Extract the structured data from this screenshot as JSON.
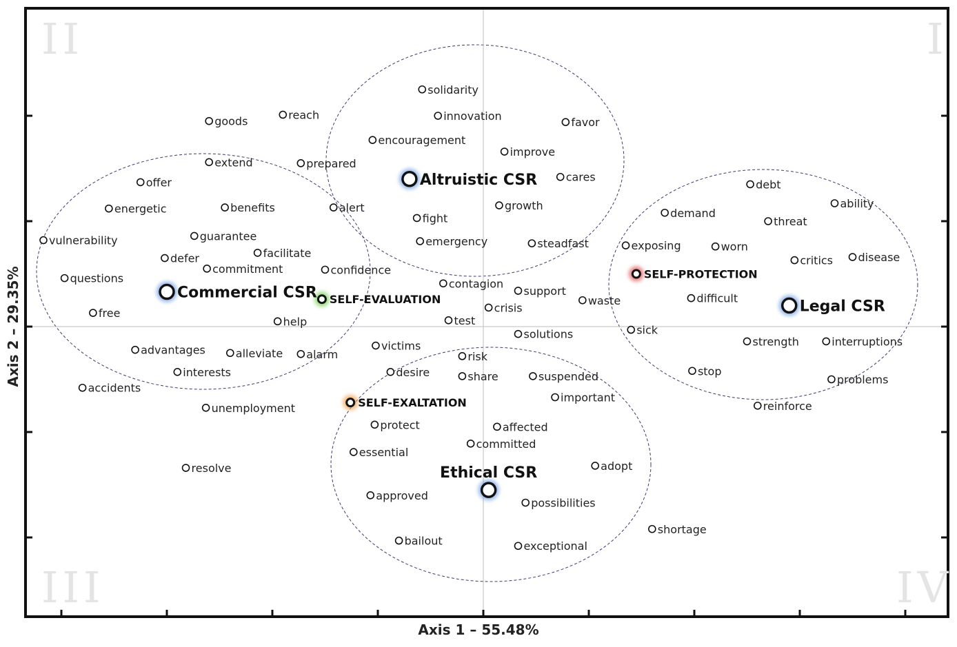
{
  "chart_data": {
    "type": "scatter",
    "xlabel": "Axis 1 – 55.48%",
    "ylabel": "Axis 2 – 29.35%",
    "quadrants": {
      "I": "I",
      "II": "II",
      "III": "III",
      "IV": "IV"
    },
    "xlim": [
      -4,
      4.4
    ],
    "ylim": [
      -2.75,
      3.0
    ],
    "grid": false,
    "origin_lines": true,
    "groups": [
      {
        "label": "Altruistic CSR",
        "x": -0.7,
        "y": 1.4
      },
      {
        "label": "Commercial CSR",
        "x": -3.0,
        "y": 0.33
      },
      {
        "label": "Legal CSR",
        "x": 2.9,
        "y": 0.2
      },
      {
        "label": "Ethical CSR",
        "x": 0.05,
        "y": -1.55
      }
    ],
    "clusters": [
      {
        "label": "SELF-EVALUATION",
        "x": -1.53,
        "y": 0.26,
        "color": "#7cd25a"
      },
      {
        "label": "SELF-PROTECTION",
        "x": 1.45,
        "y": 0.5,
        "color": "#e05a5a"
      },
      {
        "label": "SELF-EXALTATION",
        "x": -1.26,
        "y": -0.72,
        "color": "#f0a050"
      }
    ],
    "words": [
      {
        "label": "solidarity",
        "x": -0.58,
        "y": 2.25
      },
      {
        "label": "innovation",
        "x": -0.43,
        "y": 2.0
      },
      {
        "label": "favor",
        "x": 0.78,
        "y": 1.94
      },
      {
        "label": "encouragement",
        "x": -1.05,
        "y": 1.77
      },
      {
        "label": "improve",
        "x": 0.2,
        "y": 1.66
      },
      {
        "label": "cares",
        "x": 0.73,
        "y": 1.42
      },
      {
        "label": "growth",
        "x": 0.15,
        "y": 1.15
      },
      {
        "label": "fight",
        "x": -0.63,
        "y": 1.03
      },
      {
        "label": "emergency",
        "x": -0.6,
        "y": 0.81
      },
      {
        "label": "steadfast",
        "x": 0.46,
        "y": 0.79
      },
      {
        "label": "goods",
        "x": -2.6,
        "y": 1.95
      },
      {
        "label": "reach",
        "x": -1.9,
        "y": 2.01
      },
      {
        "label": "extend",
        "x": -2.6,
        "y": 1.56
      },
      {
        "label": "prepared",
        "x": -1.73,
        "y": 1.55
      },
      {
        "label": "offer",
        "x": -3.25,
        "y": 1.37
      },
      {
        "label": "energetic",
        "x": -3.55,
        "y": 1.12
      },
      {
        "label": "benefits",
        "x": -2.45,
        "y": 1.13
      },
      {
        "label": "alert",
        "x": -1.42,
        "y": 1.13
      },
      {
        "label": "guarantee",
        "x": -2.74,
        "y": 0.86
      },
      {
        "label": "vulnerability",
        "x": -4.17,
        "y": 0.82
      },
      {
        "label": "facilitate",
        "x": -2.14,
        "y": 0.7
      },
      {
        "label": "defer",
        "x": -3.02,
        "y": 0.65
      },
      {
        "label": "commitment",
        "x": -2.62,
        "y": 0.55
      },
      {
        "label": "confidence",
        "x": -1.5,
        "y": 0.54
      },
      {
        "label": "questions",
        "x": -3.97,
        "y": 0.46
      },
      {
        "label": "contagion",
        "x": -0.38,
        "y": 0.41
      },
      {
        "label": "support",
        "x": 0.33,
        "y": 0.34
      },
      {
        "label": "free",
        "x": -3.7,
        "y": 0.13
      },
      {
        "label": "crisis",
        "x": 0.05,
        "y": 0.18
      },
      {
        "label": "waste",
        "x": 0.94,
        "y": 0.25
      },
      {
        "label": "help",
        "x": -1.95,
        "y": 0.05
      },
      {
        "label": "test",
        "x": -0.33,
        "y": 0.06
      },
      {
        "label": "solutions",
        "x": 0.33,
        "y": -0.07
      },
      {
        "label": "victims",
        "x": -1.02,
        "y": -0.18
      },
      {
        "label": "advantages",
        "x": -3.3,
        "y": -0.22
      },
      {
        "label": "alleviate",
        "x": -2.4,
        "y": -0.25
      },
      {
        "label": "alarm",
        "x": -1.73,
        "y": -0.26
      },
      {
        "label": "risk",
        "x": -0.2,
        "y": -0.28
      },
      {
        "label": "interests",
        "x": -2.9,
        "y": -0.43
      },
      {
        "label": "desire",
        "x": -0.88,
        "y": -0.43
      },
      {
        "label": "share",
        "x": -0.2,
        "y": -0.47
      },
      {
        "label": "suspended",
        "x": 0.47,
        "y": -0.47
      },
      {
        "label": "accidents",
        "x": -3.8,
        "y": -0.58
      },
      {
        "label": "important",
        "x": 0.68,
        "y": -0.67
      },
      {
        "label": "unemployment",
        "x": -2.63,
        "y": -0.77
      },
      {
        "label": "protect",
        "x": -1.03,
        "y": -0.93
      },
      {
        "label": "affected",
        "x": 0.13,
        "y": -0.95
      },
      {
        "label": "committed",
        "x": -0.12,
        "y": -1.11
      },
      {
        "label": "essential",
        "x": -1.23,
        "y": -1.19
      },
      {
        "label": "adopt",
        "x": 1.06,
        "y": -1.32
      },
      {
        "label": "resolve",
        "x": -2.82,
        "y": -1.34
      },
      {
        "label": "approved",
        "x": -1.07,
        "y": -1.6
      },
      {
        "label": "possibilities",
        "x": 0.4,
        "y": -1.67
      },
      {
        "label": "shortage",
        "x": 1.6,
        "y": -1.92
      },
      {
        "label": "bailout",
        "x": -0.8,
        "y": -2.03
      },
      {
        "label": "exceptional",
        "x": 0.33,
        "y": -2.08
      },
      {
        "label": "debt",
        "x": 2.53,
        "y": 1.35
      },
      {
        "label": "ability",
        "x": 3.33,
        "y": 1.17
      },
      {
        "label": "demand",
        "x": 1.72,
        "y": 1.08
      },
      {
        "label": "threat",
        "x": 2.7,
        "y": 1.0
      },
      {
        "label": "exposing",
        "x": 1.35,
        "y": 0.77
      },
      {
        "label": "worn",
        "x": 2.2,
        "y": 0.76
      },
      {
        "label": "critics",
        "x": 2.95,
        "y": 0.63
      },
      {
        "label": "disease",
        "x": 3.5,
        "y": 0.66
      },
      {
        "label": "difficult",
        "x": 1.97,
        "y": 0.27
      },
      {
        "label": "sick",
        "x": 1.4,
        "y": -0.03
      },
      {
        "label": "strength",
        "x": 2.5,
        "y": -0.14
      },
      {
        "label": "interruptions",
        "x": 3.25,
        "y": -0.14
      },
      {
        "label": "stop",
        "x": 1.98,
        "y": -0.42
      },
      {
        "label": "problems",
        "x": 3.3,
        "y": -0.5
      },
      {
        "label": "reinforce",
        "x": 2.6,
        "y": -0.75
      }
    ]
  }
}
